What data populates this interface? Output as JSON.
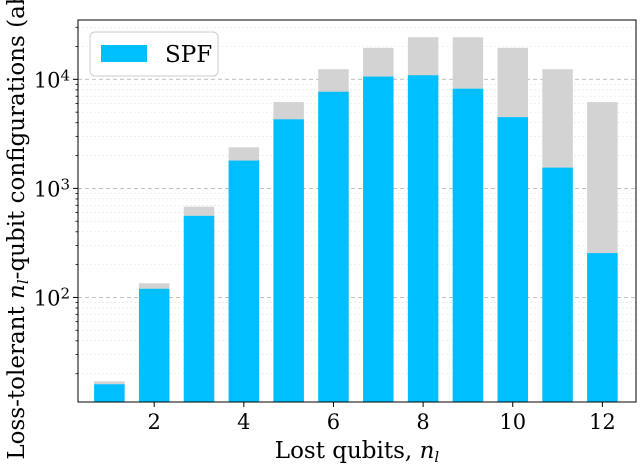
{
  "chart_data": {
    "type": "bar",
    "xlabel": "Lost qubits, n_l",
    "ylabel": "Loss-tolerant n_l-qubit configurations (abs.)",
    "x": [
      1,
      2,
      3,
      4,
      5,
      6,
      7,
      8,
      9,
      10,
      11,
      12
    ],
    "x_ticks": [
      2,
      4,
      6,
      8,
      10,
      12
    ],
    "x_tick_labels": [
      "2",
      "4",
      "6",
      "8",
      "10",
      "12"
    ],
    "xlim": [
      0.3,
      12.75
    ],
    "y_scale": "log",
    "ylim": [
      11,
      35000
    ],
    "y_ticks": [
      100,
      1000,
      10000
    ],
    "y_tick_labels": [
      "10^2",
      "10^3",
      "10^4"
    ],
    "grid": true,
    "legend_position": "top-left",
    "series": [
      {
        "name": "",
        "color": "#d3d3d3",
        "values": [
          17,
          135,
          680,
          2380,
          6190,
          12380,
          19450,
          24310,
          24310,
          19450,
          12380,
          6190
        ]
      },
      {
        "name": "SPF",
        "color": "#00bfff",
        "values": [
          16,
          120,
          560,
          1800,
          4300,
          7700,
          10600,
          10900,
          8200,
          4500,
          1550,
          255
        ]
      }
    ]
  }
}
